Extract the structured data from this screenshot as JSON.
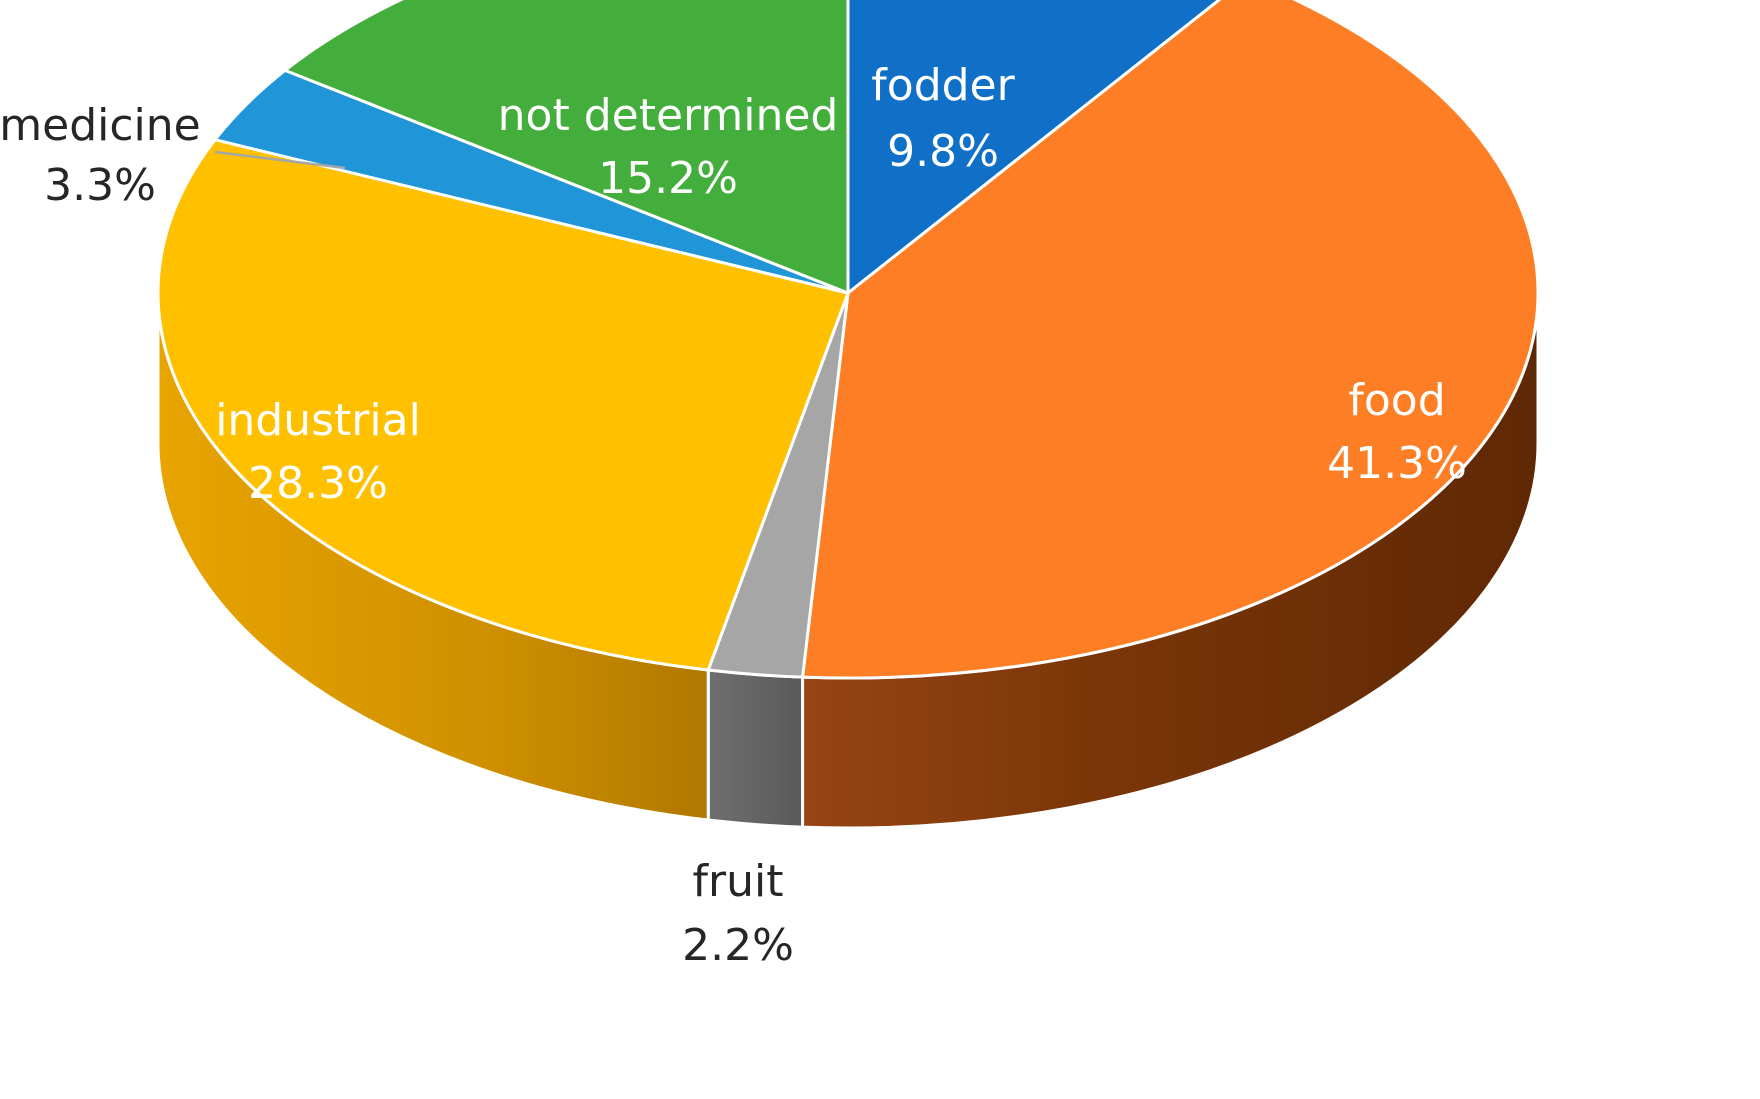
{
  "chart_data": {
    "type": "pie",
    "title": "",
    "slices": [
      {
        "name": "fodder",
        "pct_label": "9.8%",
        "value": 9.8,
        "color": "#1070C8",
        "side_color": "#0A4A88",
        "label_color": "#ffffff"
      },
      {
        "name": "food",
        "pct_label": "41.3%",
        "value": 41.3,
        "color": "#FD7E24",
        "side_color": "#7A3A0C",
        "label_color": "#ffffff"
      },
      {
        "name": "fruit",
        "pct_label": "2.2%",
        "value": 2.2,
        "color": "#A6A6A6",
        "side_color": "#666666",
        "label_color": "#262626"
      },
      {
        "name": "industrial",
        "pct_label": "28.3%",
        "value": 28.3,
        "color": "#FFC000",
        "side_color": "#CD8E00",
        "label_color": "#ffffff"
      },
      {
        "name": "medicine",
        "pct_label": "3.3%",
        "value": 3.3,
        "color": "#2096D8",
        "side_color": "#14669A",
        "label_color": "#262626"
      },
      {
        "name": "not determined",
        "pct_label": "15.2%",
        "value": 15.2,
        "color": "#43AE3C",
        "side_color": "#2E7A29",
        "label_color": "#ffffff"
      }
    ],
    "style": "3d-pie",
    "legend": "none"
  }
}
